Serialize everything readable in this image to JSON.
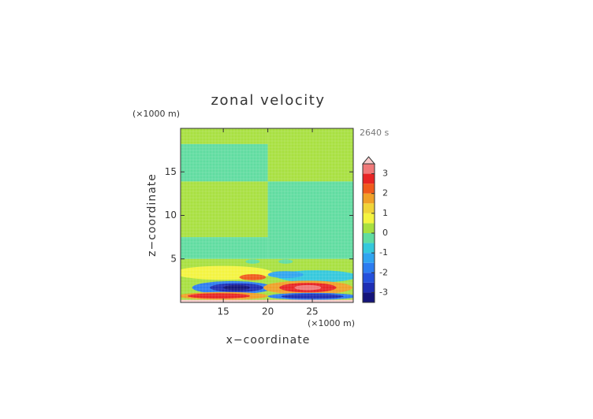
{
  "chart_data": {
    "type": "contour",
    "title": "zonal velocity",
    "x_label": "x−coordinate",
    "y_label": "z−coordinate",
    "x_unit_label": "(×1000 m)",
    "y_unit_label": "(×1000 m)",
    "annotation": "2640 s",
    "xlim": [
      10.2,
      29.6
    ],
    "ylim": [
      0,
      20
    ],
    "xticks": [
      15,
      20,
      25
    ],
    "yticks": [
      5,
      10,
      15
    ],
    "colorbar": {
      "levels": [
        -3.5,
        -3,
        -2.5,
        -2,
        -1.5,
        -1,
        -0.5,
        0,
        0.5,
        1,
        1.5,
        2,
        2.5,
        3,
        3.5
      ],
      "colors": [
        "#14147a",
        "#1e2eb4",
        "#2450dc",
        "#2c7cf0",
        "#30a4f0",
        "#34c8dc",
        "#60dca0",
        "#a8e040",
        "#f4f440",
        "#f0d438",
        "#f0a028",
        "#f05a1c",
        "#e82424",
        "#f07878"
      ],
      "extend_color": "#f8cccc",
      "ticks": [
        -3,
        -2,
        -1,
        0,
        1,
        2,
        3
      ]
    },
    "items": [
      {
        "shape": "rect",
        "x": [
          10.2,
          20
        ],
        "z": [
          18.2,
          20
        ],
        "value": 0.1
      },
      {
        "shape": "rect",
        "x": [
          10.2,
          20
        ],
        "z": [
          13.9,
          18.2
        ],
        "value": -0.1
      },
      {
        "shape": "rect",
        "x": [
          10.2,
          20
        ],
        "z": [
          7.5,
          13.9
        ],
        "value": 0.1
      },
      {
        "shape": "rect",
        "x": [
          10.2,
          20
        ],
        "z": [
          5,
          7.5
        ],
        "value": -0.1
      },
      {
        "shape": "rect",
        "x": [
          20,
          29.6
        ],
        "z": [
          13.9,
          20
        ],
        "value": 0.1
      },
      {
        "shape": "rect",
        "x": [
          20,
          29.6
        ],
        "z": [
          5,
          13.9
        ],
        "value": -0.1
      },
      {
        "shape": "rect",
        "x": [
          10.2,
          29.6
        ],
        "z": [
          0,
          5
        ],
        "value": 0.1
      },
      {
        "shape": "ellipse",
        "x": 15,
        "z": 3.4,
        "rx": 5.5,
        "rz": 0.8,
        "value": 0.6
      },
      {
        "shape": "ellipse",
        "x": 25.5,
        "z": 3.0,
        "rx": 4.5,
        "rz": 0.7,
        "value": -0.6
      },
      {
        "shape": "ellipse",
        "x": 22,
        "z": 3.2,
        "rx": 2,
        "rz": 0.4,
        "value": -1.2
      },
      {
        "shape": "ellipse",
        "x": 18.3,
        "z": 2.9,
        "rx": 1.5,
        "rz": 0.35,
        "value": 2.1
      },
      {
        "shape": "ellipse",
        "x": 18.3,
        "z": 4.7,
        "rx": 0.8,
        "rz": 0.25,
        "value": -0.1
      },
      {
        "shape": "ellipse",
        "x": 22,
        "z": 4.7,
        "rx": 0.8,
        "rz": 0.25,
        "value": -0.1
      },
      {
        "shape": "ellipse",
        "x": 16,
        "z": 1.7,
        "rx": 4.5,
        "rz": 0.75,
        "value": -1.6
      },
      {
        "shape": "ellipse",
        "x": 16.5,
        "z": 1.7,
        "rx": 3,
        "rz": 0.5,
        "value": -2.6
      },
      {
        "shape": "ellipse",
        "x": 16.5,
        "z": 1.7,
        "rx": 1.5,
        "rz": 0.3,
        "value": -3.2
      },
      {
        "shape": "ellipse",
        "x": 15,
        "z": 0.75,
        "rx": 5,
        "rz": 0.45,
        "value": 1.6
      },
      {
        "shape": "ellipse",
        "x": 14.5,
        "z": 0.75,
        "rx": 3.5,
        "rz": 0.3,
        "value": 2.6
      },
      {
        "shape": "ellipse",
        "x": 24.5,
        "z": 1.7,
        "rx": 5,
        "rz": 0.8,
        "value": 1.6
      },
      {
        "shape": "ellipse",
        "x": 24.5,
        "z": 1.7,
        "rx": 3.2,
        "rz": 0.55,
        "value": 2.6
      },
      {
        "shape": "ellipse",
        "x": 24.5,
        "z": 1.7,
        "rx": 1.5,
        "rz": 0.3,
        "value": 3.1
      },
      {
        "shape": "ellipse",
        "x": 25,
        "z": 0.7,
        "rx": 5,
        "rz": 0.4,
        "value": -1.6
      },
      {
        "shape": "ellipse",
        "x": 25,
        "z": 0.7,
        "rx": 3.5,
        "rz": 0.28,
        "value": -2.6
      },
      {
        "shape": "rect",
        "x": [
          10.2,
          29.6
        ],
        "z": [
          0,
          0.3
        ],
        "value": 3.7
      }
    ]
  }
}
